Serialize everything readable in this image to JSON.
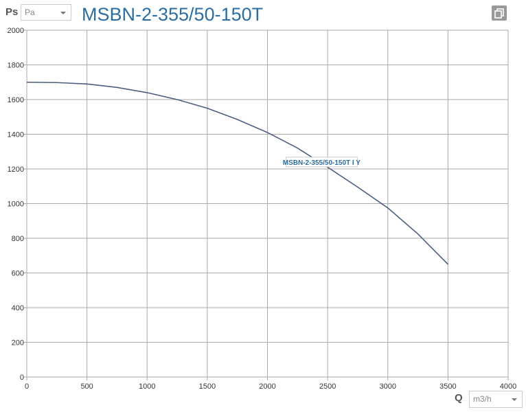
{
  "header": {
    "y_label": "Ps",
    "y_unit": "Pa",
    "title": "MSBN-2-355/50-150T"
  },
  "footer": {
    "x_label": "Q",
    "x_unit": "m3/h"
  },
  "icons": {
    "copy": "copy-icon"
  },
  "chart_data": {
    "type": "line",
    "title": "MSBN-2-355/50-150T",
    "xlabel": "Q",
    "ylabel": "Ps",
    "xlim": [
      0,
      4000
    ],
    "ylim": [
      0,
      2000
    ],
    "xticks": [
      0,
      500,
      1000,
      1500,
      2000,
      2500,
      3000,
      3500,
      4000
    ],
    "yticks": [
      0,
      200,
      400,
      600,
      800,
      1000,
      1200,
      1400,
      1600,
      1800,
      2000
    ],
    "grid": true,
    "series": [
      {
        "name": "MSBN-2-355/50-150T I Y",
        "color": "#4a5e80",
        "x": [
          0,
          250,
          500,
          750,
          1000,
          1250,
          1500,
          1750,
          2000,
          2250,
          2500,
          2750,
          3000,
          3250,
          3500
        ],
        "y": [
          1700,
          1698,
          1690,
          1670,
          1640,
          1600,
          1550,
          1485,
          1410,
          1320,
          1210,
          1095,
          975,
          825,
          650
        ]
      }
    ],
    "annotations": [
      {
        "text": "MSBN-2-355/50-150T I Y",
        "x": 2450,
        "y": 1240
      }
    ]
  }
}
